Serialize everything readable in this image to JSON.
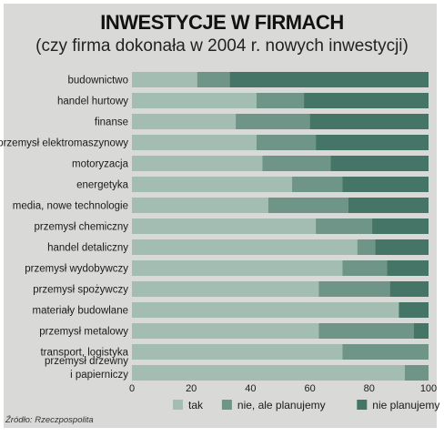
{
  "header": {
    "title": "INWESTYCJE W FIRMACH",
    "subtitle": "(czy firma dokonała w 2004 r. nowych inwestycji)"
  },
  "source": "Źródło: Rzeczpospolita",
  "colors": {
    "background": "#d9dad8",
    "tak": "#a4bdb2",
    "nie_ale_planujemy": "#6e9588",
    "nie_planujemy": "#457566"
  },
  "chart_data": {
    "type": "bar",
    "orientation": "horizontal",
    "stacked": true,
    "title": "INWESTYCJE W FIRMACH",
    "subtitle": "(czy firma dokonała w 2004 r. nowych inwestycji)",
    "xlim": [
      0,
      100
    ],
    "xticks": [
      0,
      20,
      40,
      60,
      80,
      100
    ],
    "legend_position": "bottom-right",
    "grid": false,
    "categories": [
      "budownictwo",
      "handel hurtowy",
      "finanse",
      "przemysł elektromaszynowy",
      "motoryzacja",
      "energetyka",
      "media, nowe technologie",
      "przemysł chemiczny",
      "handel detaliczny",
      "przemysł wydobywczy",
      "przemysł spożywczy",
      "materiały budowlane",
      "przemysł metalowy",
      "transport, logistyka",
      "przemysł drzewny i papierniczy"
    ],
    "category_lines": [
      [
        "budownictwo"
      ],
      [
        "handel hurtowy"
      ],
      [
        "finanse"
      ],
      [
        "przemysł elektromaszynowy"
      ],
      [
        "motoryzacja"
      ],
      [
        "energetyka"
      ],
      [
        "media, nowe technologie"
      ],
      [
        "przemysł chemiczny"
      ],
      [
        "handel detaliczny"
      ],
      [
        "przemysł wydobywczy"
      ],
      [
        "przemysł spożywczy"
      ],
      [
        "materiały budowlane"
      ],
      [
        "przemysł metalowy"
      ],
      [
        "transport, logistyka"
      ],
      [
        "przemysł drzewny",
        "i papierniczy"
      ]
    ],
    "series": [
      {
        "name": "tak",
        "color": "#a4bdb2",
        "values": [
          22,
          42,
          35,
          42,
          44,
          54,
          46,
          62,
          76,
          71,
          63,
          90,
          63,
          71,
          92
        ]
      },
      {
        "name": "nie, ale planujemy",
        "color": "#6e9588",
        "values": [
          11,
          16,
          25,
          20,
          23,
          17,
          27,
          19,
          6,
          15,
          24,
          0,
          32,
          29,
          8
        ]
      },
      {
        "name": "nie planujemy",
        "color": "#457566",
        "values": [
          67,
          42,
          40,
          38,
          33,
          29,
          27,
          19,
          18,
          14,
          13,
          10,
          5,
          0,
          0
        ]
      }
    ]
  }
}
